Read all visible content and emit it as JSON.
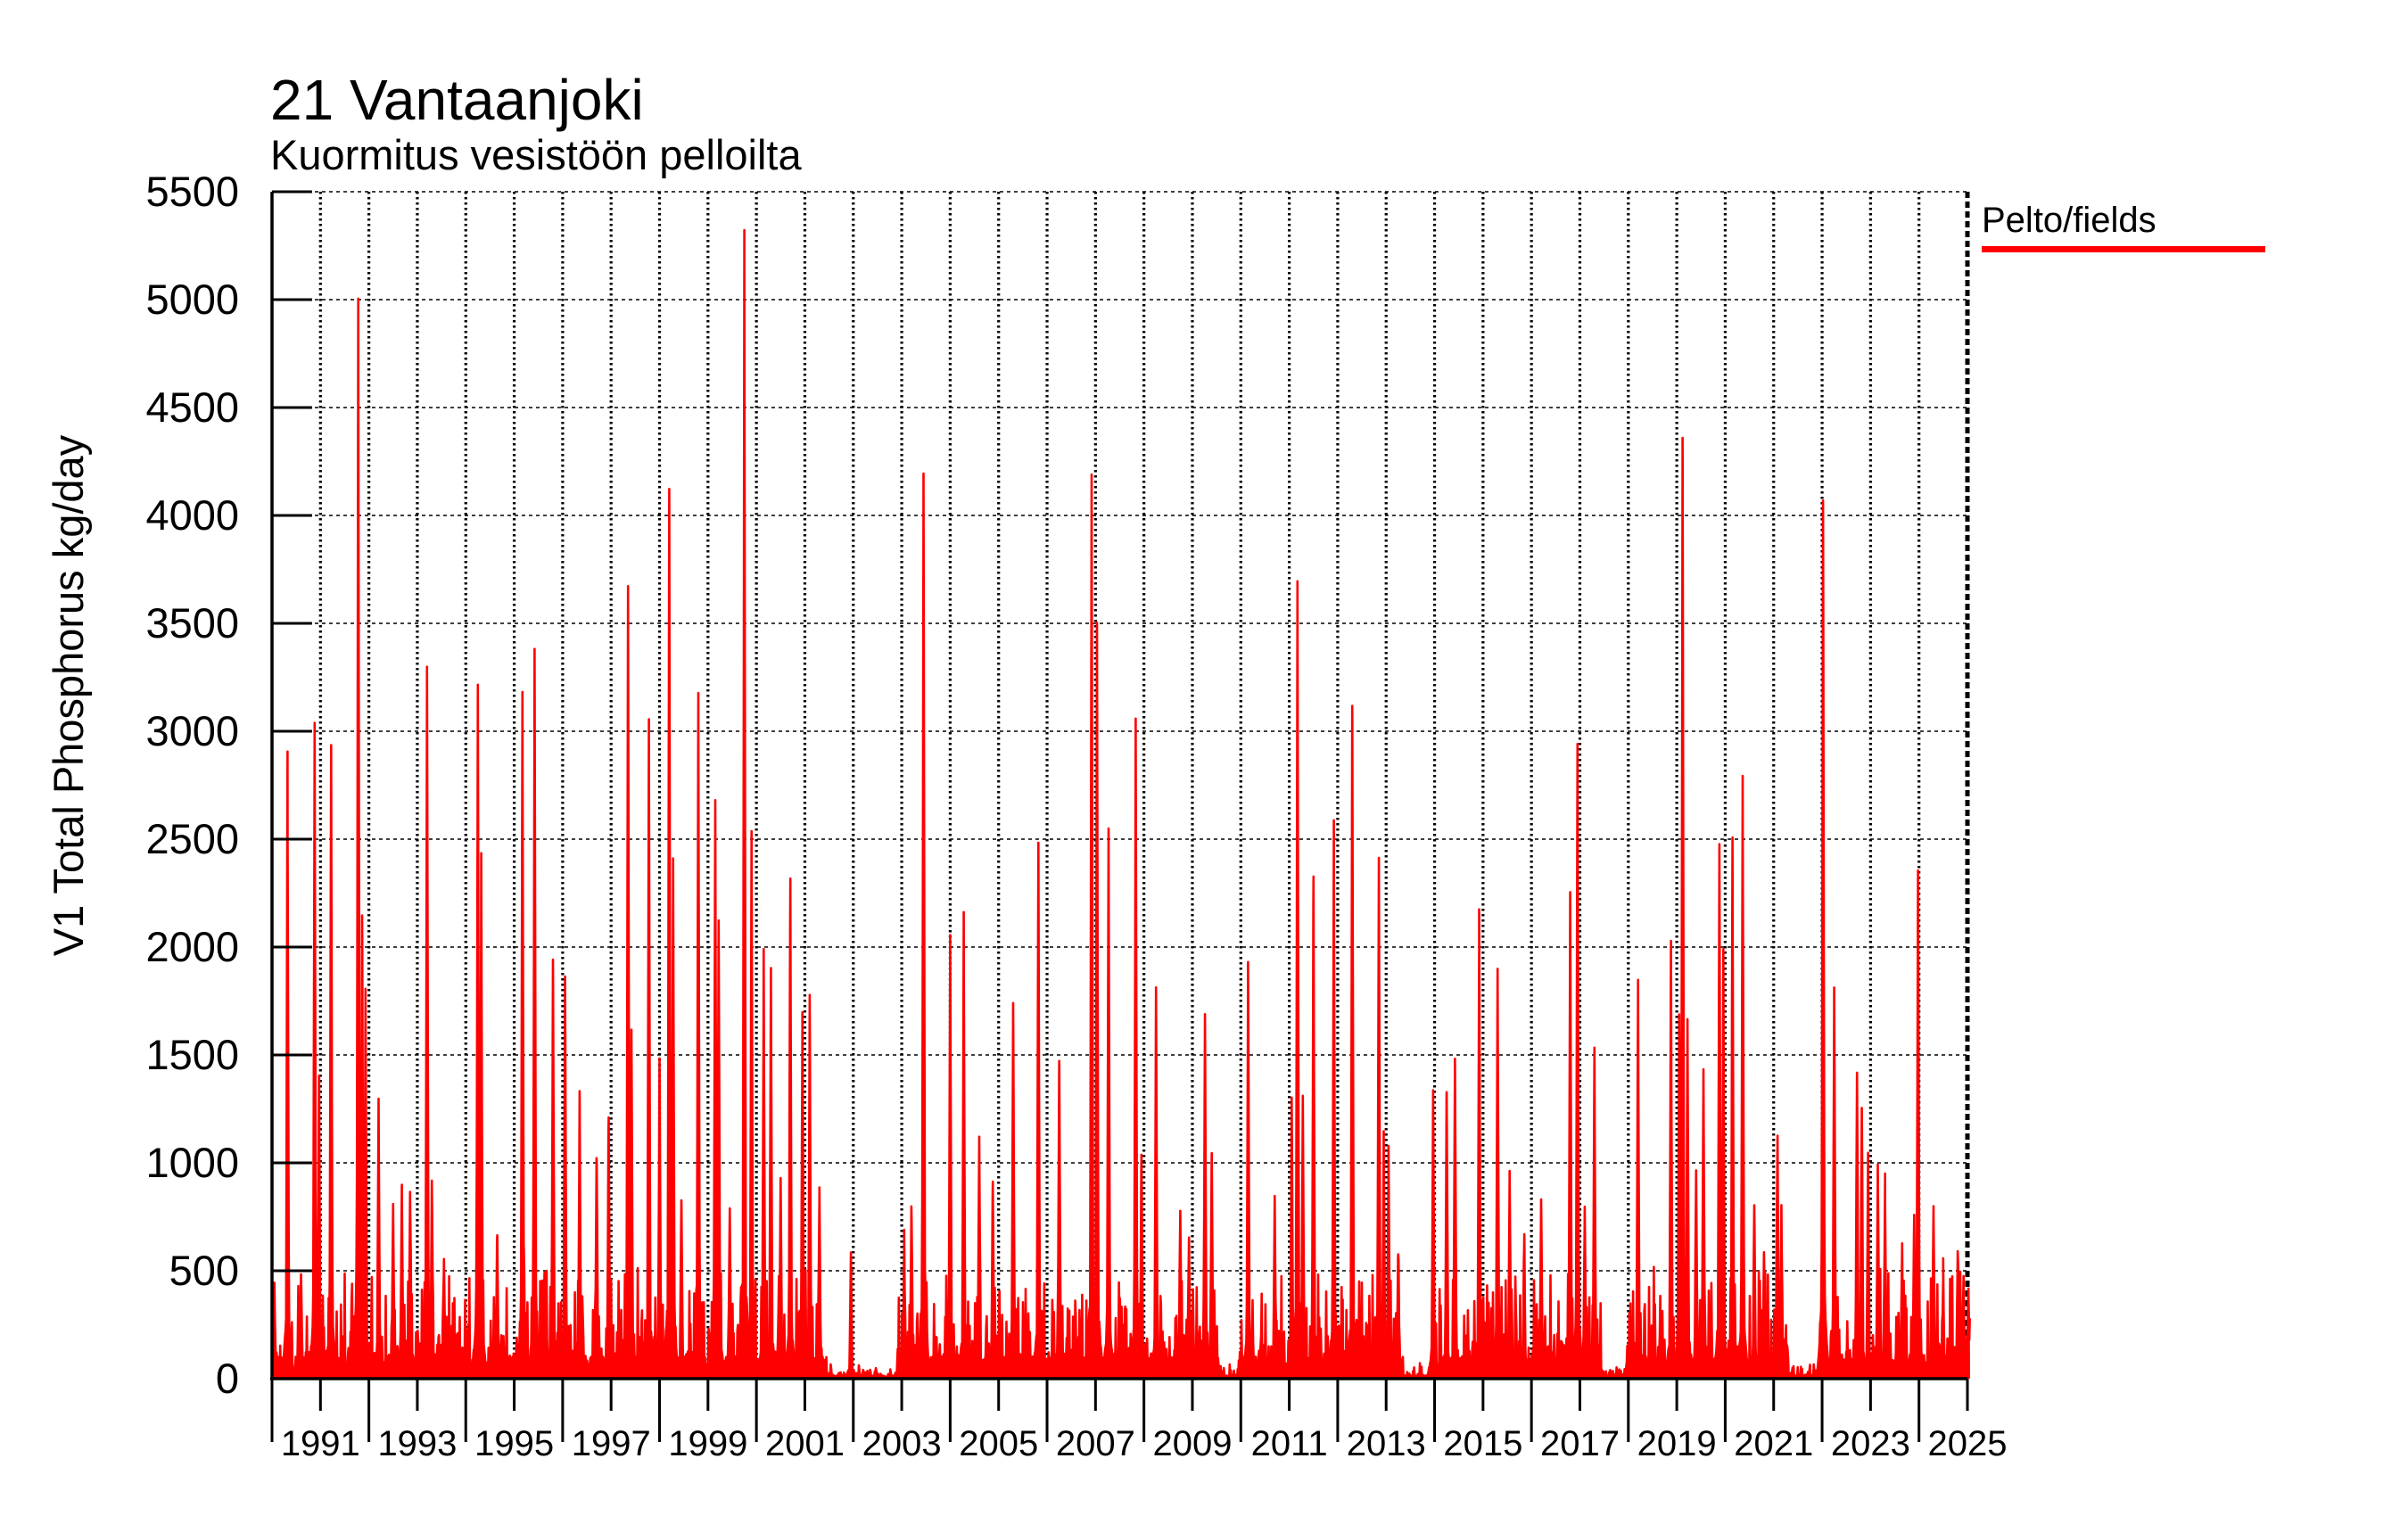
{
  "title": "21 Vantaanjoki",
  "subtitle": "Kuormitus vesistöön pelloilta",
  "y_axis": {
    "label": "V1 Total Phosphorus kg/day",
    "min": 0,
    "max": 5500,
    "step": 500,
    "tick_labels": [
      "0",
      "500",
      "1000",
      "1500",
      "2000",
      "2500",
      "3000",
      "3500",
      "4000",
      "4500",
      "5000",
      "5500"
    ]
  },
  "x_axis": {
    "start_year": 1990,
    "end_year": 2025,
    "tick_labels": [
      "1991",
      "1993",
      "1995",
      "1997",
      "1999",
      "2001",
      "2003",
      "2005",
      "2007",
      "2009",
      "2011",
      "2013",
      "2015",
      "2017",
      "2019",
      "2021",
      "2023",
      "2025"
    ]
  },
  "legend": {
    "label": "Pelto/fields",
    "color": "#ff0000",
    "position": "top-right-outside"
  },
  "chart_data": {
    "type": "line",
    "series_name": "Pelto/fields",
    "color": "#ff0000",
    "unit": "kg/day",
    "x_range": [
      1990.0,
      2025.05
    ],
    "y_range": [
      0,
      5500
    ],
    "grid": {
      "horizontal": "dashed every 500",
      "vertical": "dotted every year"
    },
    "description": "Daily agricultural field phosphorus load to watercourse; spiky flood peaks over low baseline",
    "peaks": [
      [
        1990.05,
        370
      ],
      [
        1990.32,
        2770
      ],
      [
        1990.6,
        450
      ],
      [
        1990.88,
        3010
      ],
      [
        1990.97,
        1340
      ],
      [
        1991.22,
        2890
      ],
      [
        1991.78,
        4990
      ],
      [
        1991.86,
        2130
      ],
      [
        1991.93,
        1790
      ],
      [
        1992.2,
        1270
      ],
      [
        1992.5,
        780
      ],
      [
        1992.68,
        870
      ],
      [
        1992.85,
        850
      ],
      [
        1993.2,
        3260
      ],
      [
        1993.3,
        900
      ],
      [
        1993.55,
        520
      ],
      [
        1994.25,
        3190
      ],
      [
        1994.32,
        2300
      ],
      [
        1994.65,
        640
      ],
      [
        1995.17,
        3160
      ],
      [
        1995.42,
        3370
      ],
      [
        1995.8,
        1880
      ],
      [
        1996.05,
        1850
      ],
      [
        1996.35,
        1310
      ],
      [
        1996.7,
        1000
      ],
      [
        1996.95,
        1200
      ],
      [
        1997.35,
        3650
      ],
      [
        1997.42,
        1600
      ],
      [
        1997.78,
        3040
      ],
      [
        1998.0,
        1460
      ],
      [
        1998.2,
        4100
      ],
      [
        1998.28,
        2400
      ],
      [
        1998.45,
        810
      ],
      [
        1998.8,
        3150
      ],
      [
        1999.15,
        2670
      ],
      [
        1999.22,
        2100
      ],
      [
        1999.45,
        770
      ],
      [
        1999.75,
        5180
      ],
      [
        1999.9,
        2520
      ],
      [
        2000.15,
        1850
      ],
      [
        2000.3,
        1860
      ],
      [
        2000.5,
        900
      ],
      [
        2000.7,
        2300
      ],
      [
        2000.95,
        1640
      ],
      [
        2001.1,
        1750
      ],
      [
        2001.3,
        820
      ],
      [
        2001.95,
        580
      ],
      [
        2003.05,
        590
      ],
      [
        2003.2,
        780
      ],
      [
        2003.45,
        4150
      ],
      [
        2004.0,
        2030
      ],
      [
        2004.28,
        2030
      ],
      [
        2004.6,
        1110
      ],
      [
        2004.88,
        900
      ],
      [
        2005.3,
        1730
      ],
      [
        2005.82,
        2470
      ],
      [
        2006.25,
        1430
      ],
      [
        2006.92,
        4180
      ],
      [
        2007.03,
        3490
      ],
      [
        2007.27,
        2520
      ],
      [
        2007.5,
        330
      ],
      [
        2007.83,
        3010
      ],
      [
        2007.95,
        1020
      ],
      [
        2008.25,
        1790
      ],
      [
        2008.75,
        760
      ],
      [
        2008.93,
        640
      ],
      [
        2009.26,
        1650
      ],
      [
        2009.4,
        1030
      ],
      [
        2010.15,
        1920
      ],
      [
        2010.7,
        800
      ],
      [
        2011.05,
        1280
      ],
      [
        2011.17,
        3660
      ],
      [
        2011.28,
        1300
      ],
      [
        2011.5,
        2300
      ],
      [
        2011.92,
        2570
      ],
      [
        2012.3,
        3100
      ],
      [
        2012.85,
        2400
      ],
      [
        2012.95,
        1100
      ],
      [
        2013.05,
        970
      ],
      [
        2013.25,
        560
      ],
      [
        2013.97,
        1300
      ],
      [
        2014.25,
        1310
      ],
      [
        2014.42,
        1460
      ],
      [
        2014.92,
        2050
      ],
      [
        2015.3,
        1870
      ],
      [
        2015.55,
        930
      ],
      [
        2015.85,
        600
      ],
      [
        2016.2,
        800
      ],
      [
        2016.8,
        2210
      ],
      [
        2016.95,
        2930
      ],
      [
        2017.1,
        770
      ],
      [
        2017.3,
        1430
      ],
      [
        2018.2,
        1730
      ],
      [
        2018.88,
        1910
      ],
      [
        2019.05,
        1660
      ],
      [
        2019.12,
        4330
      ],
      [
        2019.22,
        1650
      ],
      [
        2019.4,
        940
      ],
      [
        2019.55,
        1390
      ],
      [
        2019.88,
        2450
      ],
      [
        2019.96,
        1880
      ],
      [
        2020.15,
        2480
      ],
      [
        2020.36,
        2720
      ],
      [
        2020.6,
        790
      ],
      [
        2020.8,
        570
      ],
      [
        2021.08,
        1110
      ],
      [
        2021.16,
        740
      ],
      [
        2022.02,
        4060
      ],
      [
        2022.25,
        1790
      ],
      [
        2022.72,
        1400
      ],
      [
        2022.82,
        1230
      ],
      [
        2022.95,
        1010
      ],
      [
        2023.15,
        960
      ],
      [
        2023.3,
        810
      ],
      [
        2023.65,
        550
      ],
      [
        2023.9,
        740
      ],
      [
        2023.98,
        2330
      ],
      [
        2024.3,
        760
      ],
      [
        2024.5,
        440
      ],
      [
        2024.8,
        570
      ],
      [
        2024.92,
        430
      ],
      [
        2025.02,
        400
      ]
    ],
    "quiet_intervals": [
      [
        2001.45,
        2002.9
      ],
      [
        2009.55,
        2009.95
      ],
      [
        2013.35,
        2013.92
      ],
      [
        2017.45,
        2017.95
      ],
      [
        2021.3,
        2021.95
      ]
    ],
    "baseline": {
      "typical_min": 20,
      "typical_max": 110,
      "minispike_max": 430
    }
  }
}
